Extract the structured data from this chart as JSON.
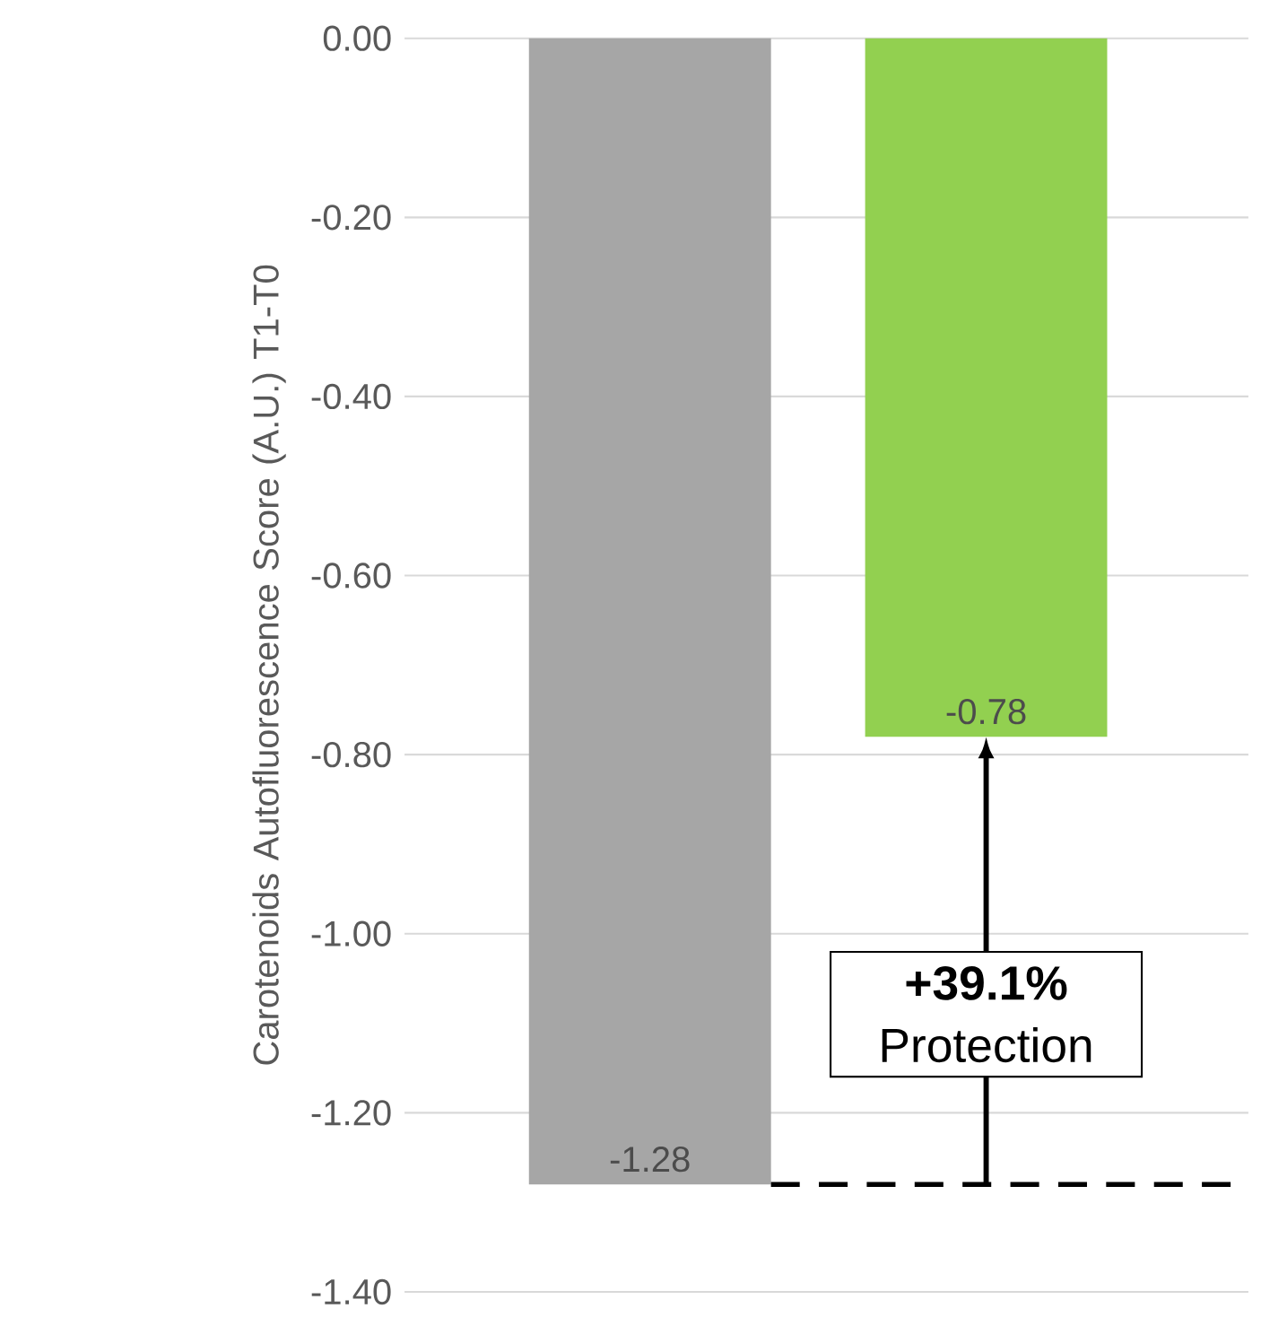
{
  "chart_data": {
    "type": "bar",
    "ylabel": "Carotenoids Autofluorescence Score (A.U.) T1-T0",
    "categories": [
      null,
      null
    ],
    "values": [
      -1.28,
      -0.78
    ],
    "colors": [
      "#a6a6a6",
      "#92d050"
    ],
    "data_labels": true,
    "ylim": [
      -1.4,
      0
    ],
    "yticks": [
      {
        "value": 0,
        "label": "0.00"
      },
      {
        "value": -0.2,
        "label": "-0.20"
      },
      {
        "value": -0.4,
        "label": "-0.40"
      },
      {
        "value": -0.6,
        "label": "-0.60"
      },
      {
        "value": -0.8,
        "label": "-0.80"
      },
      {
        "value": -1.0,
        "label": "-1.00"
      },
      {
        "value": -1.2,
        "label": "-1.20"
      },
      {
        "value": -1.4,
        "label": "-1.40"
      }
    ],
    "grid": "y",
    "ref_lines": [
      {
        "axis": "y",
        "value": -1.28,
        "line_style": "dashed",
        "color": "#000000"
      }
    ],
    "annotations": [
      "**+39.1%** Protection"
    ]
  }
}
